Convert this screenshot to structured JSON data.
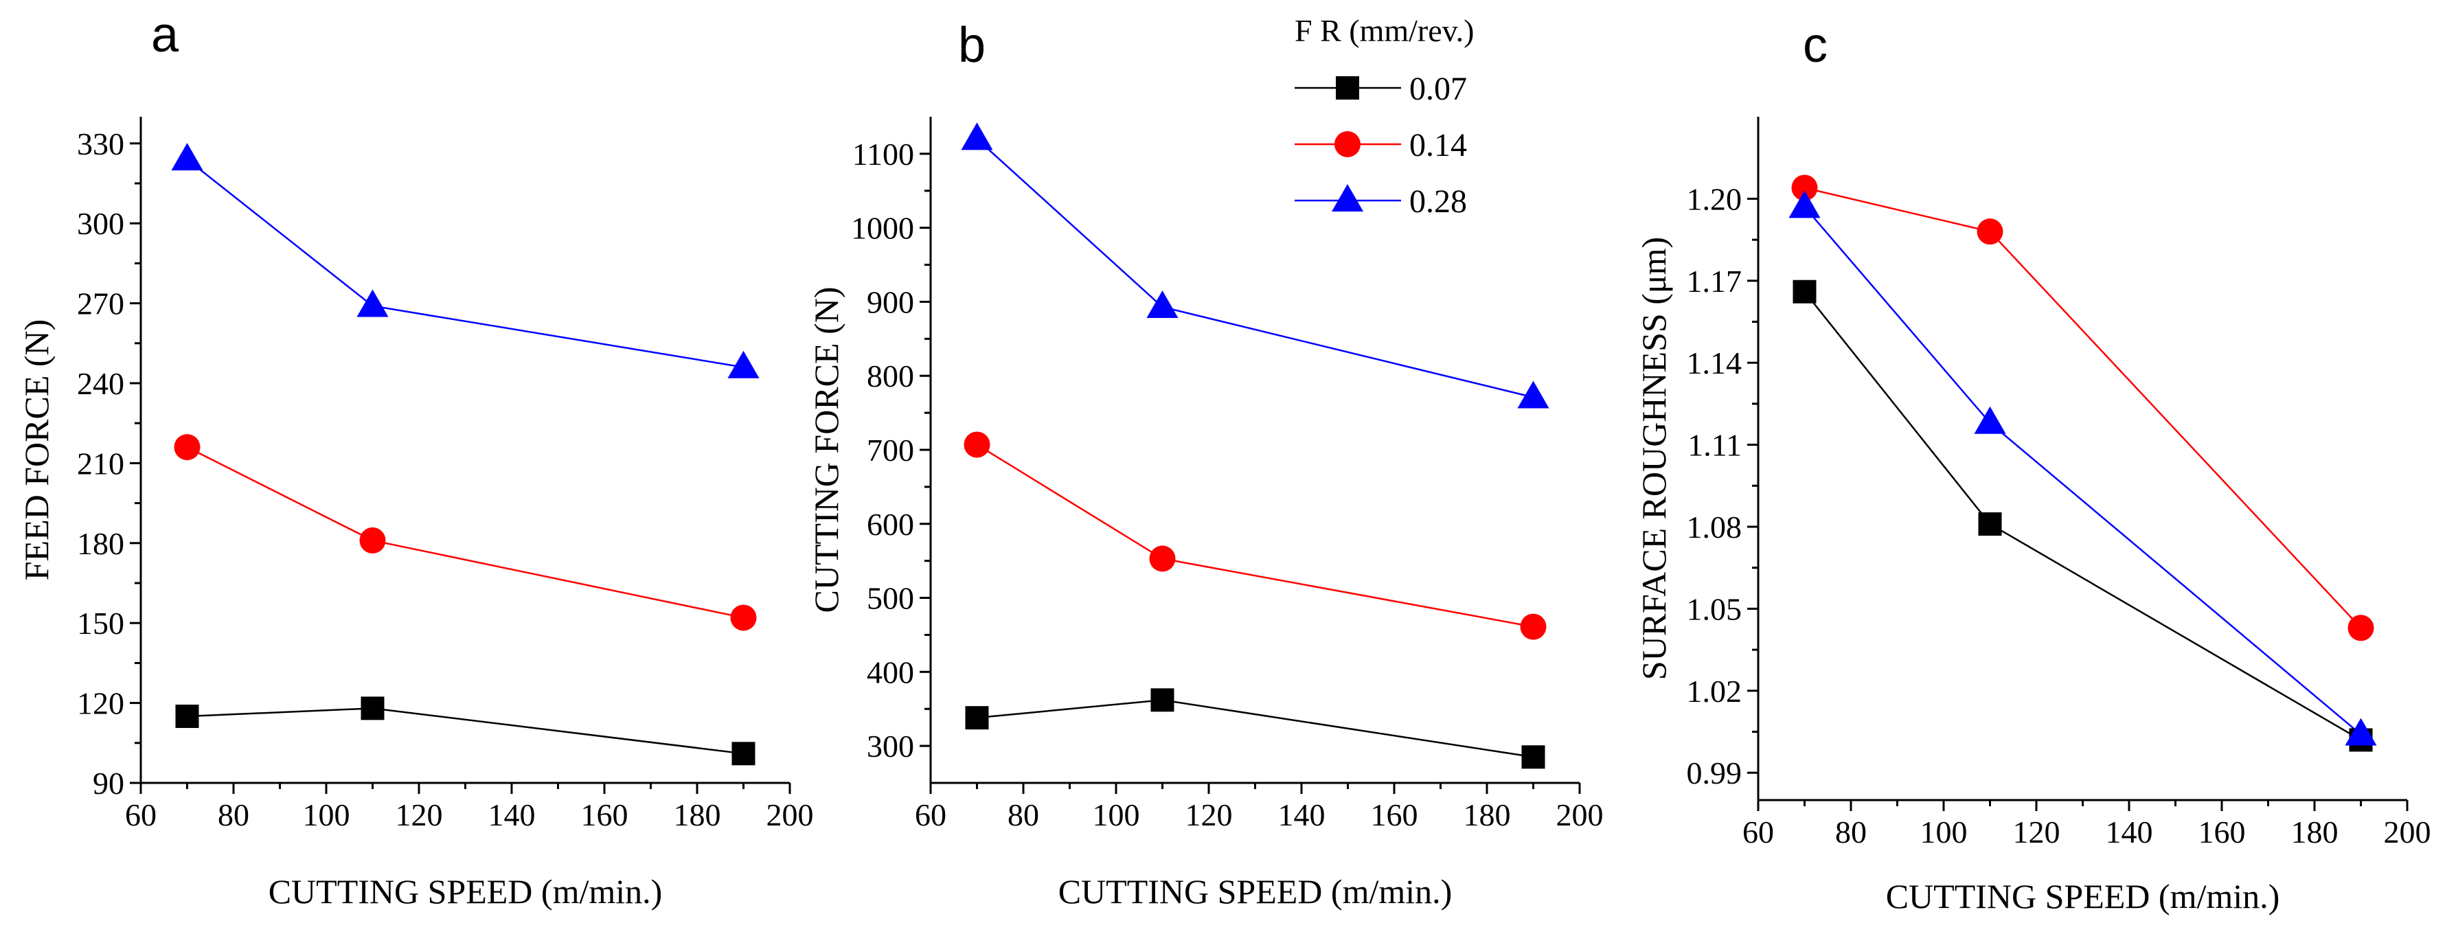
{
  "chart_data": [
    {
      "type": "line",
      "panel_label": "a",
      "xlabel": "CUTTING SPEED (m/min.)",
      "ylabel": "FEED FORCE (N)",
      "xlim": [
        60,
        200
      ],
      "ylim": [
        90,
        340
      ],
      "xticks": [
        60,
        80,
        100,
        120,
        140,
        160,
        180,
        200
      ],
      "yticks": [
        90,
        120,
        150,
        180,
        210,
        240,
        270,
        300,
        330
      ],
      "x": [
        70,
        110,
        190
      ],
      "series": [
        {
          "name": "0.07",
          "values": [
            115,
            118,
            101
          ]
        },
        {
          "name": "0.14",
          "values": [
            216,
            181,
            152
          ]
        },
        {
          "name": "0.28",
          "values": [
            324,
            269,
            246
          ]
        }
      ]
    },
    {
      "type": "line",
      "panel_label": "b",
      "xlabel": "CUTTING SPEED (m/min.)",
      "ylabel": "CUTTING FORCE (N)",
      "xlim": [
        60,
        200
      ],
      "ylim": [
        250,
        1150
      ],
      "xticks": [
        60,
        80,
        100,
        120,
        140,
        160,
        180,
        200
      ],
      "yticks": [
        300,
        400,
        500,
        600,
        700,
        800,
        900,
        1000,
        1100
      ],
      "x": [
        70,
        110,
        190
      ],
      "series": [
        {
          "name": "0.07",
          "values": [
            338,
            362,
            285
          ]
        },
        {
          "name": "0.14",
          "values": [
            707,
            553,
            461
          ]
        },
        {
          "name": "0.28",
          "values": [
            1120,
            893,
            771
          ]
        }
      ]
    },
    {
      "type": "line",
      "panel_label": "c",
      "xlabel": "CUTTING SPEED (m/min.)",
      "ylabel": "SURFACE ROUGHNESS (μm)",
      "xlim": [
        60,
        200
      ],
      "ylim": [
        0.98,
        1.23
      ],
      "xticks": [
        60,
        80,
        100,
        120,
        140,
        160,
        180,
        200
      ],
      "yticks": [
        0.99,
        1.02,
        1.05,
        1.08,
        1.11,
        1.14,
        1.17,
        1.2
      ],
      "x": [
        70,
        110,
        190
      ],
      "series": [
        {
          "name": "0.07",
          "values": [
            1.166,
            1.081,
            1.002
          ]
        },
        {
          "name": "0.14",
          "values": [
            1.204,
            1.188,
            1.043
          ]
        },
        {
          "name": "0.28",
          "values": [
            1.197,
            1.118,
            1.004
          ]
        }
      ]
    }
  ],
  "legend": {
    "title": "F R (mm/rev.)",
    "entries": [
      {
        "label": "0.07",
        "marker": "square",
        "color": "#000000"
      },
      {
        "label": "0.14",
        "marker": "circle",
        "color": "#ff0000"
      },
      {
        "label": "0.28",
        "marker": "triangle",
        "color": "#0000ff"
      }
    ]
  },
  "colors": {
    "series_0.07": "#000000",
    "series_0.14": "#ff0000",
    "series_0.28": "#0000ff"
  }
}
